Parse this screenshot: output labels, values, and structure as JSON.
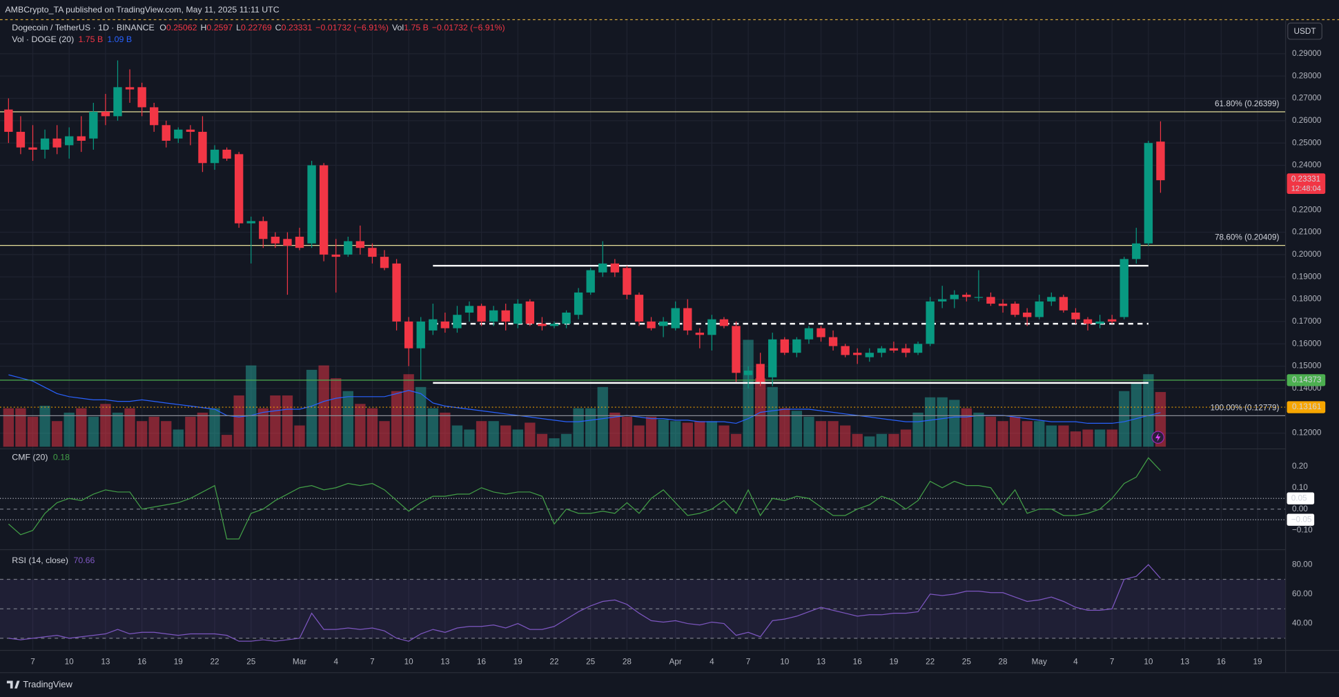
{
  "header": {
    "published": "AMBCrypto_TA published on TradingView.com, May 11, 2025 11:11 UTC",
    "brand": "TradingView",
    "currency_button": "USDT"
  },
  "chart_data": {
    "type": "candlestick",
    "title": "Dogecoin / TetherUS · 1D · BINANCE",
    "ohlc_labels": [
      "O",
      "H",
      "L",
      "C"
    ],
    "change_label": "−0.01732 (−6.91%)",
    "colors": {
      "up": "#089981",
      "down": "#f23645"
    },
    "grid": true,
    "candles": [
      [
        0.265,
        0.27,
        0.25,
        0.255
      ],
      [
        0.255,
        0.262,
        0.245,
        0.248
      ],
      [
        0.248,
        0.258,
        0.242,
        0.247
      ],
      [
        0.247,
        0.256,
        0.243,
        0.252
      ],
      [
        0.252,
        0.258,
        0.245,
        0.248
      ],
      [
        0.249,
        0.257,
        0.243,
        0.253
      ],
      [
        0.253,
        0.262,
        0.246,
        0.251
      ],
      [
        0.252,
        0.268,
        0.247,
        0.264
      ],
      [
        0.264,
        0.272,
        0.258,
        0.262
      ],
      [
        0.262,
        0.287,
        0.26,
        0.275
      ],
      [
        0.275,
        0.283,
        0.268,
        0.274
      ],
      [
        0.275,
        0.277,
        0.262,
        0.266
      ],
      [
        0.266,
        0.268,
        0.255,
        0.258
      ],
      [
        0.258,
        0.26,
        0.248,
        0.251
      ],
      [
        0.252,
        0.257,
        0.25,
        0.256
      ],
      [
        0.256,
        0.258,
        0.249,
        0.255
      ],
      [
        0.255,
        0.262,
        0.237,
        0.241
      ],
      [
        0.241,
        0.249,
        0.238,
        0.247
      ],
      [
        0.247,
        0.248,
        0.242,
        0.243
      ],
      [
        0.245,
        0.246,
        0.212,
        0.214
      ],
      [
        0.214,
        0.217,
        0.196,
        0.215
      ],
      [
        0.215,
        0.217,
        0.203,
        0.207
      ],
      [
        0.208,
        0.21,
        0.203,
        0.205
      ],
      [
        0.207,
        0.21,
        0.182,
        0.204
      ],
      [
        0.208,
        0.212,
        0.202,
        0.203
      ],
      [
        0.205,
        0.242,
        0.203,
        0.24
      ],
      [
        0.24,
        0.241,
        0.197,
        0.2
      ],
      [
        0.2,
        0.207,
        0.183,
        0.199
      ],
      [
        0.2,
        0.208,
        0.199,
        0.206
      ],
      [
        0.206,
        0.213,
        0.2,
        0.203
      ],
      [
        0.203,
        0.205,
        0.196,
        0.199
      ],
      [
        0.199,
        0.202,
        0.193,
        0.194
      ],
      [
        0.196,
        0.198,
        0.166,
        0.17
      ],
      [
        0.17,
        0.172,
        0.15,
        0.158
      ],
      [
        0.158,
        0.172,
        0.144,
        0.17
      ],
      [
        0.166,
        0.178,
        0.164,
        0.171
      ],
      [
        0.17,
        0.174,
        0.165,
        0.167
      ],
      [
        0.167,
        0.177,
        0.165,
        0.173
      ],
      [
        0.174,
        0.179,
        0.17,
        0.177
      ],
      [
        0.177,
        0.178,
        0.168,
        0.17
      ],
      [
        0.17,
        0.177,
        0.168,
        0.175
      ],
      [
        0.175,
        0.178,
        0.166,
        0.17
      ],
      [
        0.169,
        0.18,
        0.167,
        0.178
      ],
      [
        0.179,
        0.18,
        0.168,
        0.169
      ],
      [
        0.169,
        0.172,
        0.166,
        0.168
      ],
      [
        0.168,
        0.17,
        0.167,
        0.169
      ],
      [
        0.169,
        0.175,
        0.167,
        0.174
      ],
      [
        0.173,
        0.185,
        0.171,
        0.183
      ],
      [
        0.183,
        0.194,
        0.182,
        0.193
      ],
      [
        0.192,
        0.206,
        0.19,
        0.196
      ],
      [
        0.196,
        0.198,
        0.19,
        0.192
      ],
      [
        0.194,
        0.195,
        0.18,
        0.182
      ],
      [
        0.182,
        0.183,
        0.168,
        0.17
      ],
      [
        0.17,
        0.172,
        0.166,
        0.167
      ],
      [
        0.168,
        0.172,
        0.163,
        0.17
      ],
      [
        0.167,
        0.179,
        0.166,
        0.176
      ],
      [
        0.176,
        0.18,
        0.164,
        0.166
      ],
      [
        0.165,
        0.167,
        0.158,
        0.164
      ],
      [
        0.164,
        0.173,
        0.157,
        0.171
      ],
      [
        0.171,
        0.172,
        0.167,
        0.168
      ],
      [
        0.168,
        0.17,
        0.143,
        0.147
      ],
      [
        0.146,
        0.15,
        0.14,
        0.148
      ],
      [
        0.151,
        0.156,
        0.141,
        0.143
      ],
      [
        0.145,
        0.165,
        0.141,
        0.162
      ],
      [
        0.162,
        0.163,
        0.155,
        0.156
      ],
      [
        0.156,
        0.163,
        0.154,
        0.162
      ],
      [
        0.162,
        0.168,
        0.16,
        0.167
      ],
      [
        0.167,
        0.168,
        0.161,
        0.163
      ],
      [
        0.163,
        0.166,
        0.157,
        0.159
      ],
      [
        0.159,
        0.16,
        0.154,
        0.155
      ],
      [
        0.156,
        0.158,
        0.151,
        0.155
      ],
      [
        0.154,
        0.158,
        0.152,
        0.156
      ],
      [
        0.156,
        0.159,
        0.154,
        0.158
      ],
      [
        0.158,
        0.161,
        0.156,
        0.157
      ],
      [
        0.158,
        0.16,
        0.154,
        0.156
      ],
      [
        0.156,
        0.161,
        0.155,
        0.16
      ],
      [
        0.16,
        0.181,
        0.159,
        0.179
      ],
      [
        0.179,
        0.186,
        0.176,
        0.18
      ],
      [
        0.18,
        0.184,
        0.176,
        0.182
      ],
      [
        0.182,
        0.183,
        0.179,
        0.181
      ],
      [
        0.181,
        0.193,
        0.179,
        0.181
      ],
      [
        0.181,
        0.183,
        0.177,
        0.178
      ],
      [
        0.178,
        0.18,
        0.174,
        0.177
      ],
      [
        0.178,
        0.179,
        0.172,
        0.173
      ],
      [
        0.174,
        0.176,
        0.168,
        0.172
      ],
      [
        0.172,
        0.182,
        0.171,
        0.179
      ],
      [
        0.179,
        0.183,
        0.177,
        0.181
      ],
      [
        0.181,
        0.182,
        0.174,
        0.175
      ],
      [
        0.174,
        0.176,
        0.169,
        0.171
      ],
      [
        0.171,
        0.172,
        0.166,
        0.169
      ],
      [
        0.169,
        0.173,
        0.167,
        0.17
      ],
      [
        0.171,
        0.173,
        0.169,
        0.17
      ],
      [
        0.172,
        0.199,
        0.171,
        0.198
      ],
      [
        0.198,
        0.212,
        0.196,
        0.205
      ],
      [
        0.205,
        0.251,
        0.204,
        0.25
      ],
      [
        0.25062,
        0.2597,
        0.22769,
        0.23331
      ]
    ],
    "xlim": [
      -0.14,
      105.28
    ],
    "xticks": [
      {
        "value": 2,
        "label": "7"
      },
      {
        "value": 5,
        "label": "10"
      },
      {
        "value": 8,
        "label": "13"
      },
      {
        "value": 11,
        "label": "16"
      },
      {
        "value": 14,
        "label": "19"
      },
      {
        "value": 17,
        "label": "22"
      },
      {
        "value": 20,
        "label": "25"
      },
      {
        "value": 24,
        "label": "Mar"
      },
      {
        "value": 27,
        "label": "4"
      },
      {
        "value": 30,
        "label": "7"
      },
      {
        "value": 33,
        "label": "10"
      },
      {
        "value": 36,
        "label": "13"
      },
      {
        "value": 39,
        "label": "16"
      },
      {
        "value": 42,
        "label": "19"
      },
      {
        "value": 45,
        "label": "22"
      },
      {
        "value": 48,
        "label": "25"
      },
      {
        "value": 51,
        "label": "28"
      },
      {
        "value": 55,
        "label": "Apr"
      },
      {
        "value": 58,
        "label": "4"
      },
      {
        "value": 61,
        "label": "7"
      },
      {
        "value": 64,
        "label": "10"
      },
      {
        "value": 67,
        "label": "13"
      },
      {
        "value": 70,
        "label": "16"
      },
      {
        "value": 73,
        "label": "19"
      },
      {
        "value": 76,
        "label": "22"
      },
      {
        "value": 79,
        "label": "25"
      },
      {
        "value": 82,
        "label": "28"
      },
      {
        "value": 85,
        "label": "May"
      },
      {
        "value": 88,
        "label": "4"
      },
      {
        "value": 91,
        "label": "7"
      },
      {
        "value": 94,
        "label": "10"
      },
      {
        "value": 97,
        "label": "13"
      },
      {
        "value": 100,
        "label": "16"
      },
      {
        "value": 103,
        "label": "19"
      }
    ],
    "ylim": [
      0.1139,
      0.3045
    ],
    "yticks": [
      {
        "value": 0.29,
        "label": "0.29000"
      },
      {
        "value": 0.28,
        "label": "0.28000"
      },
      {
        "value": 0.27,
        "label": "0.27000"
      },
      {
        "value": 0.26,
        "label": "0.26000"
      },
      {
        "value": 0.25,
        "label": "0.25000"
      },
      {
        "value": 0.24,
        "label": "0.24000"
      },
      {
        "value": 0.22,
        "label": "0.22000"
      },
      {
        "value": 0.21,
        "label": "0.21000"
      },
      {
        "value": 0.2,
        "label": "0.20000"
      },
      {
        "value": 0.19,
        "label": "0.19000"
      },
      {
        "value": 0.18,
        "label": "0.18000"
      },
      {
        "value": 0.17,
        "label": "0.17000"
      },
      {
        "value": 0.16,
        "label": "0.16000"
      },
      {
        "value": 0.15,
        "label": "0.15000"
      },
      {
        "value": 0.14,
        "label": "0.14000"
      },
      {
        "value": 0.12,
        "label": "0.12000"
      }
    ],
    "last_price": {
      "value": 0.23331,
      "label": "0.23331",
      "countdown": "12:48:04",
      "color": "#f23645"
    },
    "fib_levels": [
      {
        "value": 0.26399,
        "label": "61.80% (0.26399)",
        "color": "#e6df9a"
      },
      {
        "value": 0.20409,
        "label": "78.60% (0.20409)",
        "color": "#e6df9a"
      },
      {
        "value": 0.12779,
        "label": "100.00% (0.12779)",
        "color": "#8a8d96"
      }
    ],
    "price_lines": [
      {
        "value": 0.14373,
        "label": "0.14373",
        "color": "#4caf50",
        "style": "solid"
      },
      {
        "value": 0.13161,
        "label": "0.13161",
        "color": "#f7a600",
        "style": "dotted"
      }
    ],
    "drawn_lines": [
      {
        "value": 0.195,
        "from": 35,
        "to": 94,
        "style": "solid"
      },
      {
        "value": 0.169,
        "from": 35,
        "to": 94,
        "style": "dashed"
      },
      {
        "value": 0.1425,
        "from": 35,
        "to": 94,
        "style": "solid"
      }
    ],
    "volume": {
      "name": "Vol · DOGE (20)",
      "value_label": "1.75 B",
      "ma_label": "1.09 B",
      "ma_color": "#2962ff",
      "values": [
        1.23,
        1.23,
        0.96,
        1.31,
        0.82,
        1.09,
        1.23,
        0.96,
        1.37,
        1.09,
        1.23,
        0.82,
        0.96,
        0.82,
        0.55,
        0.96,
        1.09,
        1.23,
        0.38,
        1.64,
        2.6,
        1.23,
        1.64,
        1.64,
        0.68,
        2.46,
        2.6,
        2.19,
        1.78,
        1.37,
        1.23,
        0.82,
        1.78,
        2.32,
        1.91,
        1.23,
        1.09,
        0.68,
        0.55,
        0.82,
        0.82,
        0.68,
        0.55,
        0.77,
        0.41,
        0.27,
        0.41,
        1.23,
        1.23,
        1.91,
        1.09,
        0.96,
        0.68,
        0.96,
        0.87,
        0.82,
        0.77,
        0.82,
        0.82,
        0.68,
        0.41,
        3.42,
        2.19,
        1.91,
        1.23,
        1.15,
        0.96,
        0.82,
        0.82,
        0.68,
        0.41,
        0.33,
        0.41,
        0.41,
        0.55,
        1.09,
        1.58,
        1.58,
        1.5,
        1.23,
        1.09,
        0.96,
        0.82,
        0.96,
        0.82,
        0.82,
        0.68,
        0.68,
        0.49,
        0.55,
        0.55,
        0.55,
        1.78,
        2.05,
        2.32,
        1.75
      ],
      "ma": [
        2.3,
        2.2,
        2.1,
        1.9,
        1.7,
        1.6,
        1.55,
        1.5,
        1.5,
        1.45,
        1.45,
        1.5,
        1.45,
        1.4,
        1.35,
        1.3,
        1.25,
        1.2,
        1.0,
        0.95,
        1.0,
        1.1,
        1.15,
        1.2,
        1.2,
        1.3,
        1.45,
        1.55,
        1.6,
        1.6,
        1.6,
        1.6,
        1.7,
        1.8,
        1.7,
        1.4,
        1.3,
        1.25,
        1.2,
        1.15,
        1.1,
        1.05,
        1.0,
        0.95,
        0.9,
        0.85,
        0.8,
        0.8,
        0.85,
        0.9,
        0.95,
        1.0,
        0.95,
        0.9,
        0.9,
        0.85,
        0.85,
        0.8,
        0.8,
        0.8,
        0.75,
        0.9,
        1.1,
        1.15,
        1.2,
        1.2,
        1.2,
        1.15,
        1.1,
        1.05,
        1.0,
        0.95,
        0.9,
        0.85,
        0.8,
        0.8,
        0.85,
        0.9,
        0.95,
        0.95,
        1.0,
        1.0,
        1.0,
        0.95,
        0.9,
        0.85,
        0.8,
        0.8,
        0.8,
        0.75,
        0.75,
        0.75,
        0.8,
        0.9,
        1.0,
        1.09
      ]
    },
    "cmf": {
      "name": "CMF (20)",
      "value_label": "0.18",
      "color": "#43a047",
      "ylim": [
        -0.188,
        0.276
      ],
      "yticks": [
        {
          "value": 0.2,
          "label": "0.20"
        },
        {
          "value": 0.1,
          "label": "0.10"
        },
        {
          "value": 0,
          "label": "0.00"
        },
        {
          "value": -0.1,
          "label": "−0.10"
        }
      ],
      "levels": [
        {
          "value": 0.05,
          "label": "0.05"
        },
        {
          "value": -0.05,
          "label": "−0.05"
        }
      ],
      "values": [
        -0.07,
        -0.12,
        -0.1,
        -0.02,
        0.03,
        0.05,
        0.04,
        0.07,
        0.09,
        0.08,
        0.08,
        0.0,
        0.01,
        0.02,
        0.03,
        0.05,
        0.08,
        0.11,
        -0.14,
        -0.14,
        -0.02,
        0.0,
        0.04,
        0.07,
        0.1,
        0.11,
        0.09,
        0.1,
        0.12,
        0.11,
        0.12,
        0.09,
        0.04,
        -0.01,
        0.03,
        0.06,
        0.06,
        0.07,
        0.07,
        0.1,
        0.08,
        0.07,
        0.08,
        0.08,
        0.06,
        -0.07,
        0.0,
        -0.02,
        -0.02,
        -0.01,
        -0.02,
        0.03,
        -0.02,
        0.05,
        0.09,
        0.03,
        -0.03,
        -0.02,
        0.0,
        0.04,
        -0.02,
        0.09,
        -0.03,
        0.05,
        0.04,
        0.06,
        0.05,
        0.01,
        -0.03,
        -0.03,
        0.0,
        0.02,
        0.06,
        0.04,
        0.0,
        0.04,
        0.13,
        0.1,
        0.13,
        0.11,
        0.11,
        0.1,
        0.02,
        0.09,
        -0.02,
        0.0,
        0.0,
        -0.03,
        -0.03,
        -0.02,
        0.0,
        0.05,
        0.12,
        0.15,
        0.24,
        0.18
      ]
    },
    "rsi": {
      "name": "RSI (14, close)",
      "value_label": "70.66",
      "color": "#7e57c2",
      "ylim": [
        22.6,
        89.3
      ],
      "yticks": [
        {
          "value": 80,
          "label": "80.00"
        },
        {
          "value": 60,
          "label": "60.00"
        },
        {
          "value": 40,
          "label": "40.00"
        }
      ],
      "bands": [
        70,
        50,
        30
      ],
      "values": [
        30,
        29,
        30,
        31,
        32,
        30,
        31,
        32,
        33,
        36,
        33,
        34,
        34,
        33,
        32,
        33,
        33,
        33,
        32,
        28,
        28,
        29,
        28,
        29,
        30,
        47,
        36,
        36,
        37,
        36,
        37,
        35,
        30,
        28,
        33,
        36,
        34,
        37,
        38,
        38,
        39,
        37,
        40,
        36,
        36,
        38,
        43,
        48,
        52,
        55,
        56,
        53,
        47,
        42,
        41,
        42,
        40,
        39,
        41,
        40,
        32,
        34,
        31,
        42,
        43,
        45,
        48,
        51,
        49,
        47,
        45,
        46,
        46,
        47,
        47,
        48,
        60,
        59,
        60,
        62,
        62,
        61,
        61,
        58,
        55,
        56,
        58,
        55,
        51,
        49,
        49,
        50,
        70,
        72,
        80,
        70.66
      ]
    }
  }
}
